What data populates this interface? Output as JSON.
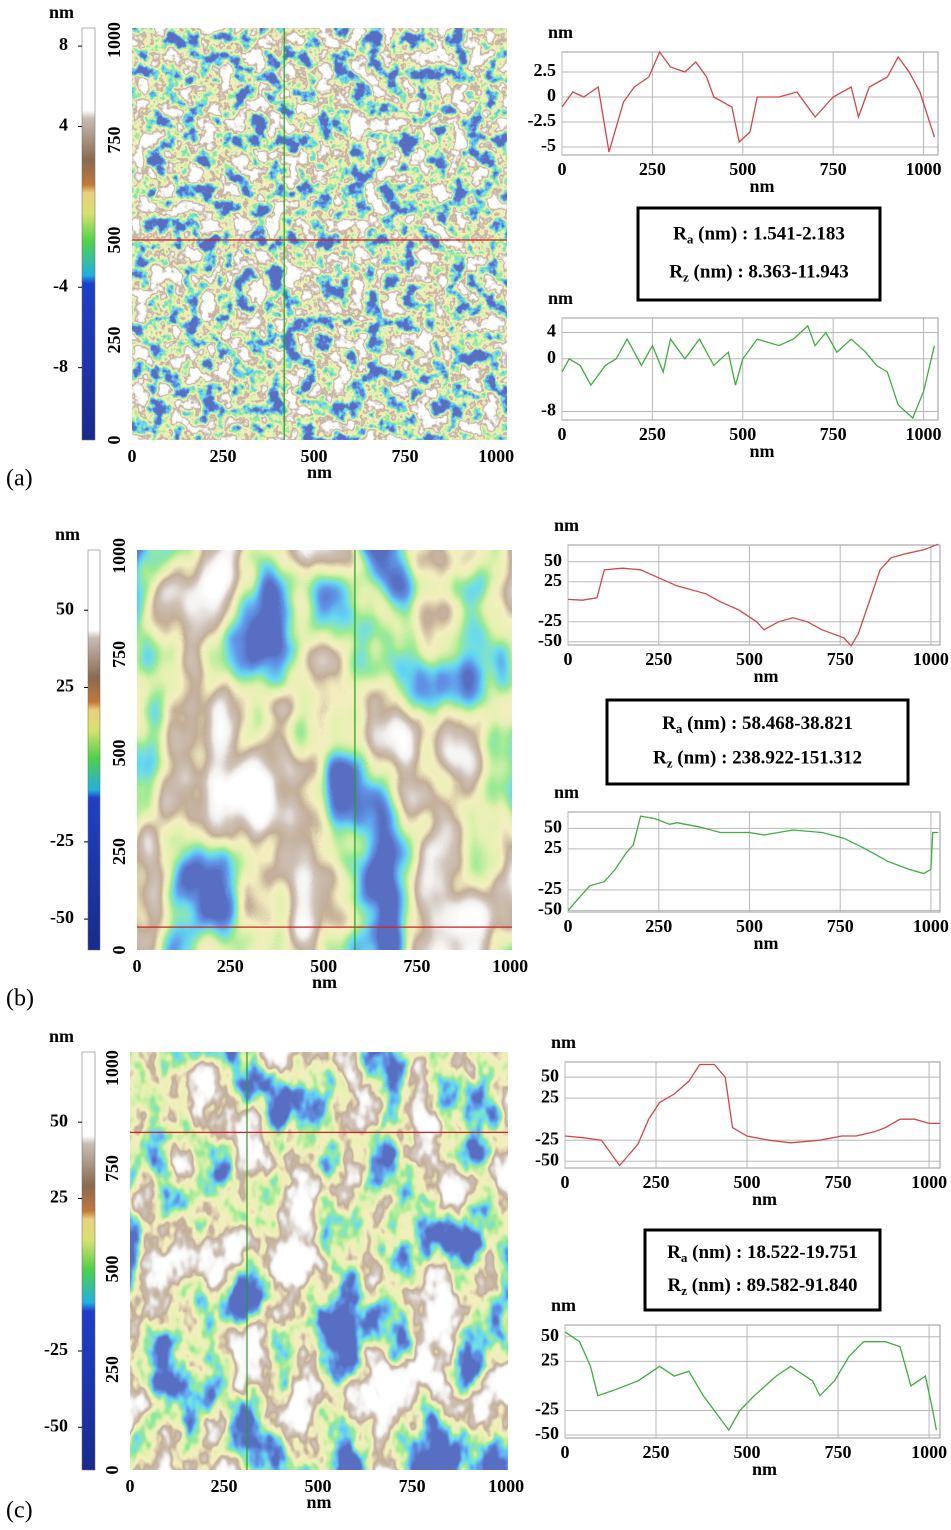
{
  "panels": [
    {
      "label": "(a)",
      "colorbar": {
        "unit": "nm",
        "clim": [
          -11.6,
          8.9
        ],
        "ticks": [
          8,
          4,
          -4,
          -8
        ]
      },
      "image": {
        "xlabel": "nm",
        "xlim": [
          0,
          1030
        ],
        "ylim": [
          0,
          1030
        ],
        "xticks": [
          0,
          250,
          500,
          750,
          1000
        ],
        "yticks": [
          0,
          250,
          500,
          750,
          1000
        ],
        "cursor_x": 418,
        "cursor_y": 500
      },
      "profiles": [
        {
          "type": "line",
          "ylabel": "nm",
          "xlabel": "nm",
          "color": "#d04848",
          "grid": true,
          "xlim": [
            0,
            1040
          ],
          "ylim": [
            -5.8,
            4.5
          ],
          "xticks": [
            0,
            250,
            500,
            750,
            1000
          ],
          "yticks": [
            2.5,
            0,
            -2.5,
            -5
          ],
          "x": [
            0,
            30,
            60,
            100,
            130,
            170,
            200,
            240,
            270,
            300,
            340,
            370,
            400,
            420,
            470,
            490,
            520,
            540,
            600,
            650,
            700,
            750,
            800,
            820,
            850,
            900,
            930,
            960,
            990,
            1030
          ],
          "values": [
            -1,
            0.5,
            0,
            1,
            -5.5,
            -0.5,
            1,
            2,
            4.5,
            3,
            2.5,
            3.5,
            2,
            0,
            -1,
            -4.5,
            -3.5,
            0,
            0,
            0.5,
            -2,
            0,
            1,
            -2,
            1,
            2,
            4,
            2.5,
            0.5,
            -4
          ]
        },
        {
          "type": "line",
          "ylabel": "nm",
          "xlabel": "nm",
          "color": "#3fae3f",
          "grid": true,
          "xlim": [
            0,
            1040
          ],
          "ylim": [
            -9.3,
            6.2
          ],
          "xticks": [
            0,
            250,
            500,
            750,
            1000
          ],
          "yticks": [
            4,
            0,
            -8
          ],
          "x": [
            0,
            20,
            50,
            80,
            120,
            150,
            180,
            200,
            220,
            250,
            280,
            300,
            340,
            380,
            420,
            460,
            480,
            500,
            540,
            600,
            640,
            680,
            700,
            730,
            760,
            800,
            840,
            870,
            900,
            930,
            970,
            1000,
            1030
          ],
          "values": [
            -2,
            0,
            -1,
            -4,
            -1,
            0,
            3,
            1,
            -1,
            2,
            -2,
            3,
            0,
            3,
            -1,
            1,
            -4,
            0,
            3,
            2,
            3,
            5,
            2,
            4,
            1,
            3,
            1,
            -1,
            -2,
            -7,
            -9,
            -5,
            2
          ]
        }
      ],
      "roughness": [
        {
          "symbol": "R",
          "subscript": "a",
          "text": " (nm) : 1.541-2.183"
        },
        {
          "symbol": "R",
          "subscript": "z",
          "text": " (nm) : 8.363-11.943"
        }
      ]
    },
    {
      "label": "(b)",
      "colorbar": {
        "unit": "nm",
        "clim": [
          -60,
          69.5
        ],
        "ticks": [
          50,
          25,
          -25,
          -50
        ]
      },
      "image": {
        "xlabel": "nm",
        "xlim": [
          0,
          1005
        ],
        "ylim": [
          0,
          1015
        ],
        "xticks": [
          0,
          250,
          500,
          750,
          1000
        ],
        "yticks": [
          0,
          250,
          500,
          750,
          1000
        ],
        "cursor_x": 584,
        "cursor_y": 58
      },
      "profiles": [
        {
          "type": "line",
          "ylabel": "nm",
          "xlabel": "nm",
          "color": "#d04848",
          "grid": true,
          "xlim": [
            0,
            1025
          ],
          "ylim": [
            -54,
            71
          ],
          "xticks": [
            0,
            250,
            500,
            750,
            1000
          ],
          "yticks": [
            50,
            25,
            -25,
            -50
          ],
          "x": [
            0,
            40,
            80,
            100,
            150,
            200,
            250,
            300,
            380,
            420,
            470,
            520,
            540,
            580,
            620,
            660,
            700,
            730,
            760,
            780,
            800,
            830,
            860,
            890,
            930,
            980,
            1020
          ],
          "values": [
            3,
            2,
            5,
            40,
            42,
            40,
            30,
            20,
            10,
            0,
            -10,
            -25,
            -35,
            -25,
            -20,
            -25,
            -35,
            -40,
            -45,
            -55,
            -40,
            0,
            40,
            55,
            60,
            65,
            72
          ]
        },
        {
          "type": "line",
          "ylabel": "nm",
          "xlabel": "nm",
          "color": "#3fae3f",
          "grid": true,
          "xlim": [
            0,
            1025
          ],
          "ylim": [
            -52,
            70
          ],
          "xticks": [
            0,
            250,
            500,
            750,
            1000
          ],
          "yticks": [
            50,
            25,
            -25,
            -50
          ],
          "x": [
            0,
            30,
            60,
            100,
            130,
            160,
            180,
            200,
            240,
            280,
            300,
            360,
            420,
            500,
            540,
            620,
            700,
            760,
            820,
            880,
            940,
            980,
            1000,
            1005,
            1020
          ],
          "values": [
            -50,
            -35,
            -20,
            -15,
            0,
            20,
            30,
            65,
            62,
            55,
            57,
            52,
            45,
            45,
            42,
            48,
            45,
            38,
            25,
            10,
            0,
            -5,
            0,
            45,
            45
          ]
        }
      ],
      "roughness": [
        {
          "symbol": "R",
          "subscript": "a",
          "text": " (nm) : 58.468-38.821"
        },
        {
          "symbol": "R",
          "subscript": "z",
          "text": " (nm) : 238.922-151.312"
        }
      ]
    },
    {
      "label": "(c)",
      "colorbar": {
        "unit": "nm",
        "clim": [
          -64,
          73
        ],
        "ticks": [
          50,
          25,
          -25,
          -50
        ]
      },
      "image": {
        "xlabel": "nm",
        "xlim": [
          0,
          1005
        ],
        "ylim": [
          0,
          1040
        ],
        "xticks": [
          0,
          250,
          500,
          750,
          1000
        ],
        "yticks": [
          0,
          250,
          500,
          750,
          1000
        ],
        "cursor_x": 311,
        "cursor_y": 840
      },
      "profiles": [
        {
          "type": "line",
          "ylabel": "nm",
          "xlabel": "nm",
          "color": "#d04848",
          "grid": true,
          "xlim": [
            0,
            1030
          ],
          "ylim": [
            -58,
            68
          ],
          "xticks": [
            0,
            250,
            500,
            750,
            1000
          ],
          "yticks": [
            50,
            25,
            -25,
            -50
          ],
          "x": [
            0,
            50,
            100,
            150,
            200,
            230,
            260,
            300,
            340,
            370,
            410,
            440,
            460,
            500,
            560,
            620,
            700,
            760,
            800,
            850,
            880,
            920,
            960,
            1000,
            1030
          ],
          "values": [
            -20,
            -22,
            -25,
            -55,
            -30,
            0,
            20,
            30,
            45,
            65,
            65,
            50,
            -10,
            -20,
            -25,
            -28,
            -25,
            -20,
            -20,
            -15,
            -10,
            0,
            0,
            -5,
            -5
          ]
        },
        {
          "type": "line",
          "ylabel": "nm",
          "xlabel": "nm",
          "color": "#3fae3f",
          "grid": true,
          "xlim": [
            0,
            1030
          ],
          "ylim": [
            -53,
            62
          ],
          "xticks": [
            0,
            250,
            500,
            750,
            1000
          ],
          "yticks": [
            50,
            25,
            -25,
            -50
          ],
          "x": [
            0,
            40,
            70,
            90,
            130,
            200,
            260,
            300,
            340,
            380,
            420,
            450,
            480,
            520,
            580,
            620,
            680,
            700,
            740,
            780,
            820,
            880,
            920,
            950,
            990,
            1010,
            1020
          ],
          "values": [
            55,
            45,
            20,
            -10,
            -5,
            5,
            20,
            10,
            15,
            -10,
            -30,
            -45,
            -25,
            -10,
            10,
            20,
            5,
            -10,
            5,
            30,
            45,
            45,
            40,
            0,
            10,
            -25,
            -45
          ]
        }
      ],
      "roughness": [
        {
          "symbol": "R",
          "subscript": "a",
          "text": " (nm) : 18.522-19.751"
        },
        {
          "symbol": "R",
          "subscript": "z",
          "text": " (nm) : 89.582-91.840"
        }
      ]
    }
  ]
}
